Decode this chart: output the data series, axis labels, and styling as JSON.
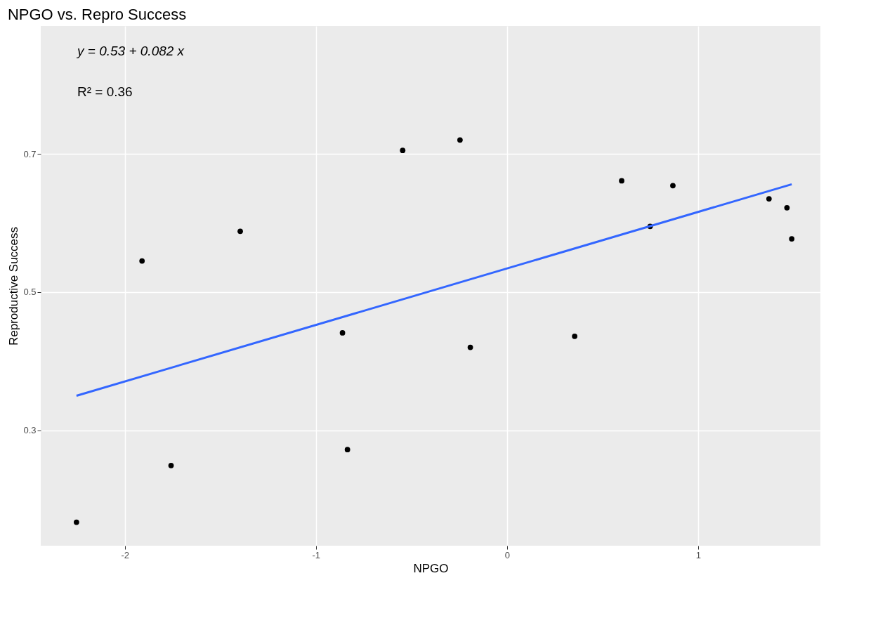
{
  "chart_data": {
    "type": "scatter",
    "title": "NPGO vs. Repro Success",
    "xlabel": "NPGO",
    "ylabel": "Reproductive Success",
    "annotations": [
      "y = 0.53 + 0.082 x",
      "R² = 0.36"
    ],
    "xlim": [
      -2.44,
      1.64
    ],
    "ylim": [
      0.133,
      0.885
    ],
    "xticks": [
      -2,
      -1,
      0,
      1
    ],
    "yticks": [
      0.3,
      0.5,
      0.7
    ],
    "grid": true,
    "series": [
      {
        "color": "#000000",
        "marker": "circle",
        "x": [
          -2.253,
          -1.91,
          -1.758,
          -1.396,
          -0.861,
          -0.835,
          -0.546,
          -0.246,
          -0.192,
          0.354,
          0.6,
          0.749,
          0.868,
          1.371,
          1.465,
          1.49
        ],
        "values": [
          0.167,
          0.545,
          0.249,
          0.588,
          0.441,
          0.272,
          0.705,
          0.72,
          0.42,
          0.436,
          0.661,
          0.595,
          0.654,
          0.635,
          0.622,
          0.577
        ]
      },
      {
        "type": "line",
        "color": "#3366ff",
        "line_style": "solid",
        "x": [
          -2.253,
          1.49
        ],
        "values": [
          0.35,
          0.656
        ]
      }
    ]
  }
}
